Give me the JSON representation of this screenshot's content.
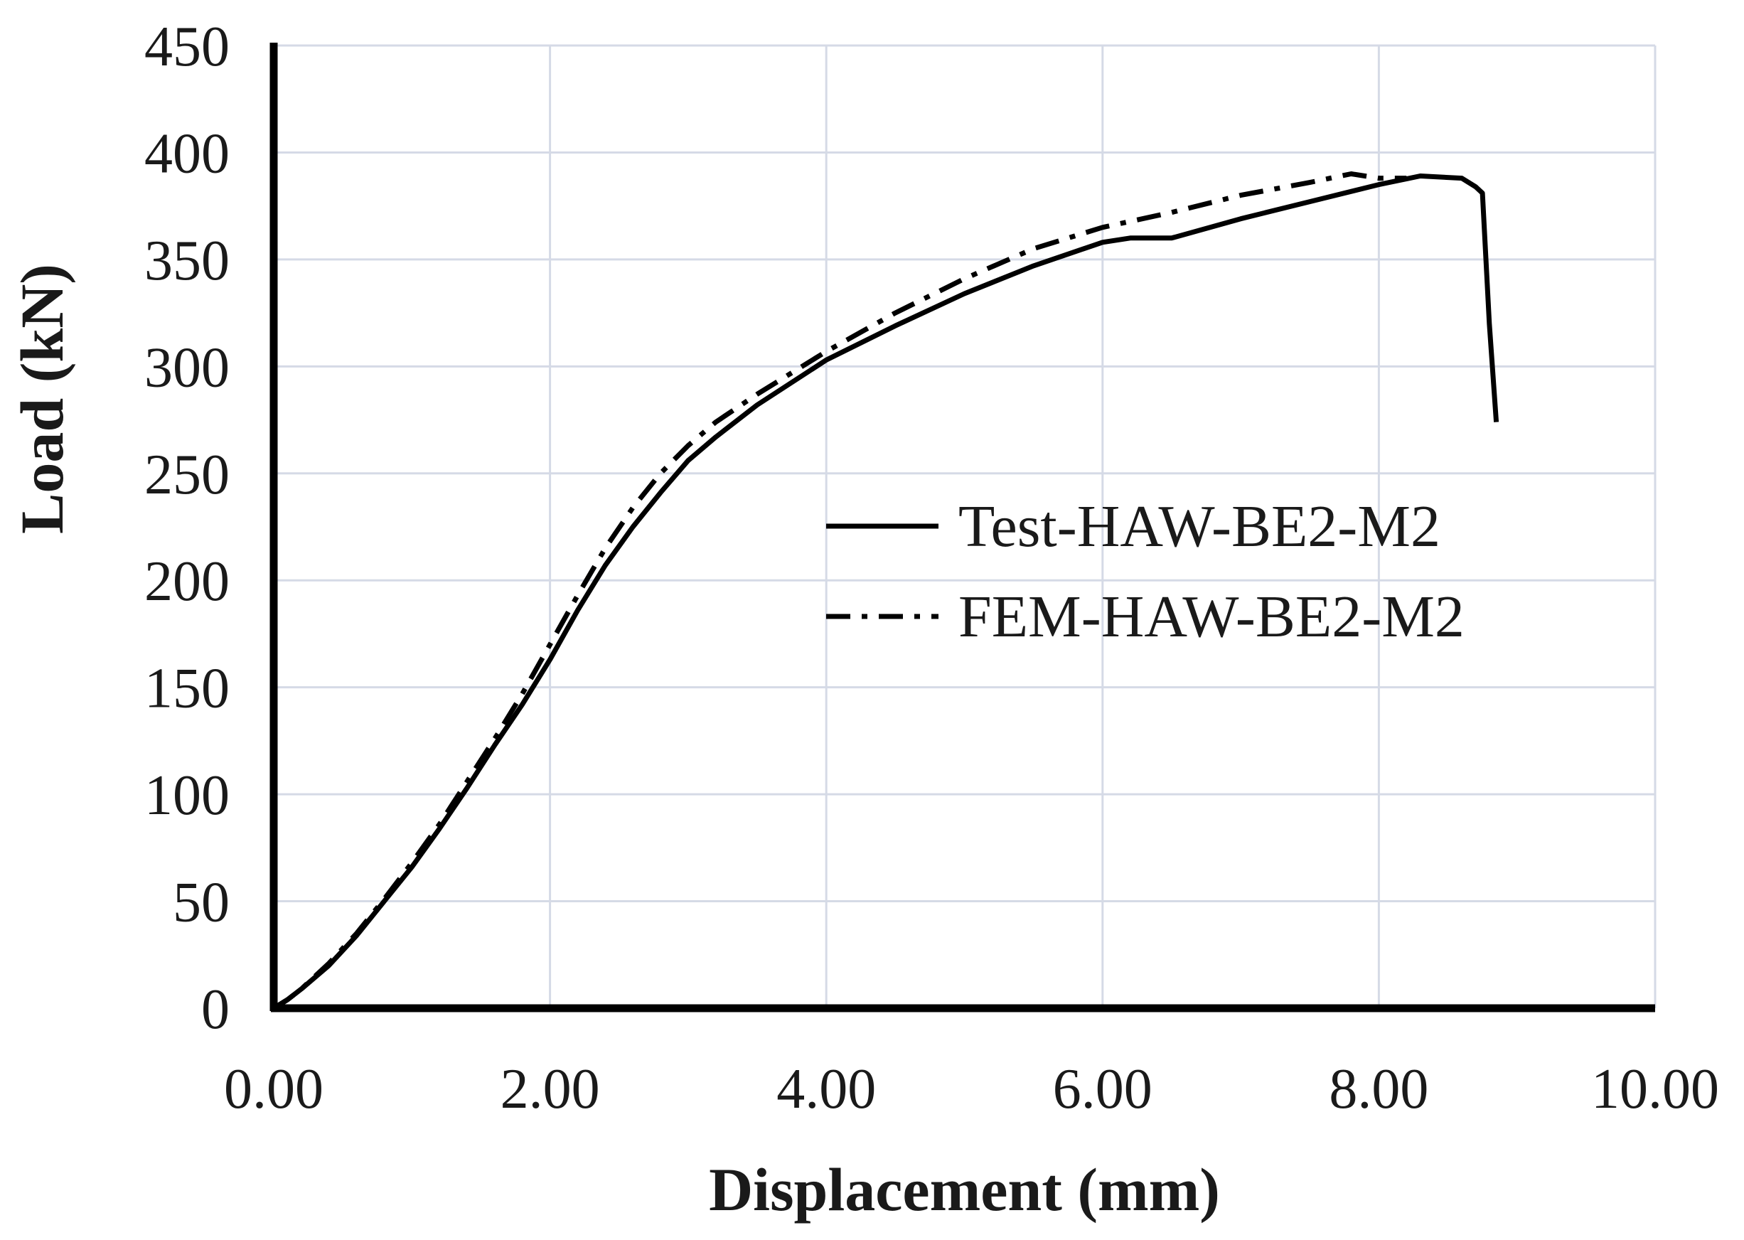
{
  "chart_data": {
    "type": "line",
    "title": "",
    "xlabel": "Displacement (mm)",
    "ylabel": "Load (kN)",
    "xlim": [
      0,
      10
    ],
    "ylim": [
      0,
      450
    ],
    "xticks": [
      0,
      2,
      4,
      6,
      8,
      10
    ],
    "xtick_labels": [
      "0.00",
      "2.00",
      "4.00",
      "6.00",
      "8.00",
      "10.00"
    ],
    "yticks": [
      0,
      50,
      100,
      150,
      200,
      250,
      300,
      350,
      400,
      450
    ],
    "ytick_labels": [
      "0",
      "50",
      "100",
      "150",
      "200",
      "250",
      "300",
      "350",
      "400",
      "450"
    ],
    "grid": true,
    "legend_position": "center-right",
    "series": [
      {
        "name": "Test-HAW-BE2-M2",
        "style": "solid",
        "color": "#000000",
        "x": [
          0.0,
          0.1,
          0.2,
          0.4,
          0.6,
          0.8,
          1.0,
          1.2,
          1.4,
          1.6,
          1.8,
          2.0,
          2.2,
          2.4,
          2.6,
          2.8,
          3.0,
          3.2,
          3.5,
          4.0,
          4.5,
          5.0,
          5.5,
          6.0,
          6.2,
          6.5,
          7.0,
          7.5,
          8.0,
          8.3,
          8.6,
          8.7,
          8.75,
          8.8,
          8.85
        ],
        "y": [
          0,
          4,
          9,
          20,
          34,
          50,
          66,
          84,
          103,
          123,
          142,
          163,
          186,
          207,
          225,
          241,
          256,
          267,
          282,
          303,
          319,
          334,
          347,
          358,
          360,
          360,
          369,
          377,
          385,
          389,
          388,
          384,
          381,
          320,
          274
        ]
      },
      {
        "name": "FEM-HAW-BE2-M2",
        "style": "dash-dot",
        "color": "#000000",
        "x": [
          0.0,
          0.1,
          0.2,
          0.4,
          0.6,
          0.8,
          1.0,
          1.2,
          1.4,
          1.6,
          1.8,
          2.0,
          2.2,
          2.4,
          2.6,
          2.8,
          3.0,
          3.2,
          3.5,
          4.0,
          4.5,
          5.0,
          5.5,
          6.0,
          6.5,
          7.0,
          7.5,
          7.8,
          8.0,
          8.2
        ],
        "y": [
          0,
          4,
          9,
          21,
          35,
          51,
          68,
          86,
          106,
          126,
          147,
          170,
          193,
          215,
          234,
          250,
          263,
          274,
          287,
          307,
          325,
          341,
          355,
          365,
          372,
          380,
          386,
          390,
          388,
          388
        ]
      }
    ]
  }
}
